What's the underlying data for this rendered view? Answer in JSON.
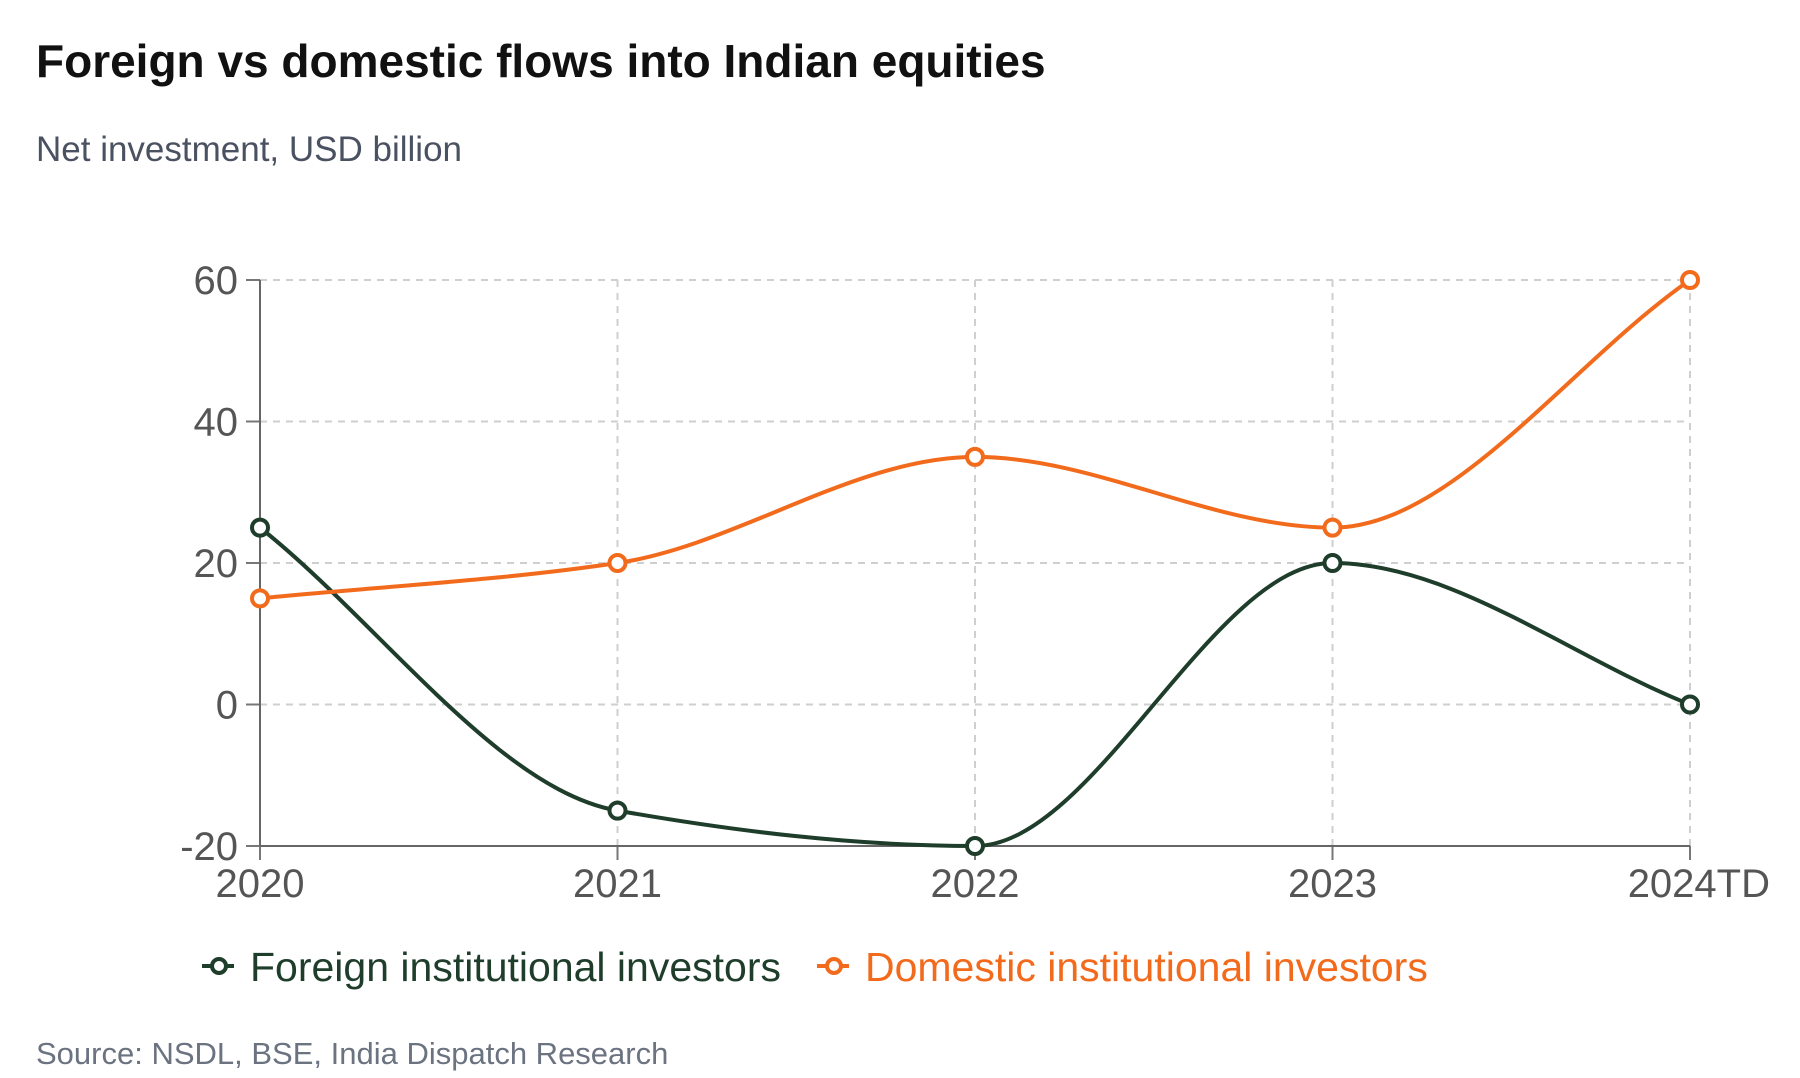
{
  "title": "Foreign vs domestic flows into Indian equities",
  "subtitle": "Net investment, USD billion",
  "source": "Source: NSDL, BSE, India Dispatch Research",
  "chart_data": {
    "type": "line",
    "categories": [
      "2020",
      "2021",
      "2022",
      "2023",
      "2024TD"
    ],
    "series": [
      {
        "name": "Foreign institutional investors",
        "values": [
          25,
          -15,
          -20,
          20,
          0
        ],
        "color": "#1f3d2b"
      },
      {
        "name": "Domestic institutional investors",
        "values": [
          15,
          20,
          35,
          25,
          60
        ],
        "color": "#f26b1d"
      }
    ],
    "ylim": [
      -20,
      60
    ],
    "yticks": [
      -20,
      0,
      20,
      40,
      60
    ],
    "grid": true,
    "curve": "smooth",
    "legend_position": "bottom"
  }
}
